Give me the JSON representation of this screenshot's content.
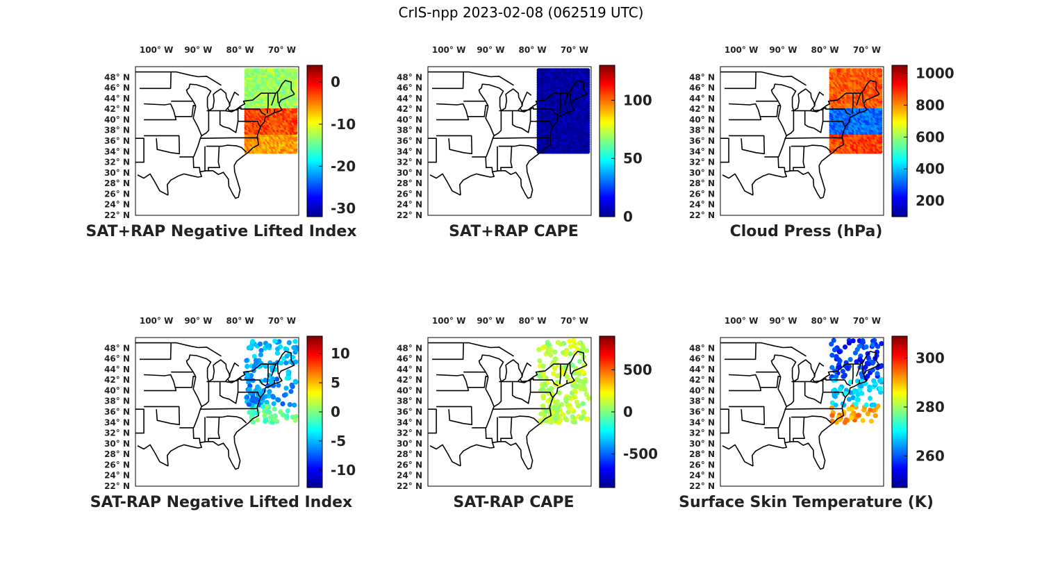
{
  "figure": {
    "title": "CrIS-npp 2023-02-08 (062519 UTC)"
  },
  "colormap": [
    "#00008f",
    "#0000ff",
    "#0080ff",
    "#00ffff",
    "#80ff80",
    "#ffff00",
    "#ff8000",
    "#ff0000",
    "#800000"
  ],
  "map": {
    "lon_range": [
      -105,
      -66
    ],
    "lat_range": [
      22,
      50
    ],
    "lon_labels": [
      "100° W",
      "90° W",
      "80° W",
      "70° W"
    ],
    "lon_label_values": [
      -100,
      -90,
      -80,
      -70
    ],
    "lat_labels": [
      "48° N",
      "46° N",
      "44° N",
      "42° N",
      "40° N",
      "38° N",
      "36° N",
      "34° N",
      "32° N",
      "30° N",
      "28° N",
      "26° N",
      "24° N",
      "22° N"
    ],
    "lat_label_values": [
      48,
      46,
      44,
      42,
      40,
      38,
      36,
      34,
      32,
      30,
      28,
      26,
      24,
      22
    ]
  },
  "chart_data": [
    {
      "type": "heatmap",
      "title": "SAT+RAP Negative Lifted Index",
      "colorbar": {
        "range": [
          -32,
          4
        ],
        "ticks": [
          0,
          -10,
          -20,
          -30
        ],
        "tick_labels": [
          "0",
          "-10",
          "-20",
          "-30"
        ]
      },
      "coverage": "swath",
      "extent": {
        "lon": [
          -78.5,
          -66.5
        ],
        "lat": [
          34,
          49.5
        ]
      },
      "fields": [
        {
          "region": "north",
          "value": -13
        },
        {
          "region": "central",
          "value": -3
        },
        {
          "region": "south",
          "value": -6
        }
      ]
    },
    {
      "type": "heatmap",
      "title": "SAT+RAP CAPE",
      "colorbar": {
        "range": [
          0,
          130
        ],
        "ticks": [
          100,
          50,
          0
        ],
        "tick_labels": [
          "100",
          "50",
          "0"
        ]
      },
      "coverage": "swath",
      "extent": {
        "lon": [
          -78.5,
          -66.5
        ],
        "lat": [
          34,
          49.5
        ]
      },
      "fields": [
        {
          "region": "all",
          "value": 2
        }
      ]
    },
    {
      "type": "heatmap",
      "title": "Cloud Press (hPa)",
      "colorbar": {
        "range": [
          100,
          1050
        ],
        "ticks": [
          1000,
          800,
          600,
          400,
          200
        ],
        "tick_labels": [
          "1000",
          "800",
          "600",
          "400",
          "200"
        ]
      },
      "coverage": "swath",
      "extent": {
        "lon": [
          -78.5,
          -66.5
        ],
        "lat": [
          34,
          49.5
        ]
      },
      "fields": [
        {
          "region": "north",
          "value": 850
        },
        {
          "region": "central",
          "value": 320
        },
        {
          "region": "south",
          "value": 870
        }
      ]
    },
    {
      "type": "heatmap",
      "title": "SAT-RAP Negative Lifted Index",
      "colorbar": {
        "range": [
          -13,
          13
        ],
        "ticks": [
          10,
          5,
          0,
          -5,
          -10
        ],
        "tick_labels": [
          "10",
          "5",
          "0",
          "-5",
          "-10"
        ]
      },
      "coverage": "scattered",
      "extent": {
        "lon": [
          -78.5,
          -66.5
        ],
        "lat": [
          34,
          49.5
        ]
      },
      "fields": [
        {
          "region": "north",
          "value": -5
        },
        {
          "region": "central",
          "value": -6
        },
        {
          "region": "south",
          "value": -1
        }
      ]
    },
    {
      "type": "heatmap",
      "title": "SAT-RAP CAPE",
      "colorbar": {
        "range": [
          -900,
          900
        ],
        "ticks": [
          500,
          0,
          -500
        ],
        "tick_labels": [
          "500",
          "0",
          "-500"
        ]
      },
      "coverage": "scattered",
      "extent": {
        "lon": [
          -78.5,
          -66.5
        ],
        "lat": [
          34,
          49.5
        ]
      },
      "fields": [
        {
          "region": "all",
          "value": 100
        }
      ]
    },
    {
      "type": "heatmap",
      "title": "Surface Skin Temperature (K)",
      "colorbar": {
        "range": [
          247,
          309
        ],
        "ticks": [
          300,
          280,
          260
        ],
        "tick_labels": [
          "300",
          "280",
          "260"
        ]
      },
      "coverage": "scattered",
      "extent": {
        "lon": [
          -78.5,
          -66.5
        ],
        "lat": [
          34,
          49.5
        ]
      },
      "fields": [
        {
          "region": "north",
          "value": 258
        },
        {
          "region": "central",
          "value": 268
        },
        {
          "region": "south",
          "value": 292
        }
      ]
    }
  ]
}
